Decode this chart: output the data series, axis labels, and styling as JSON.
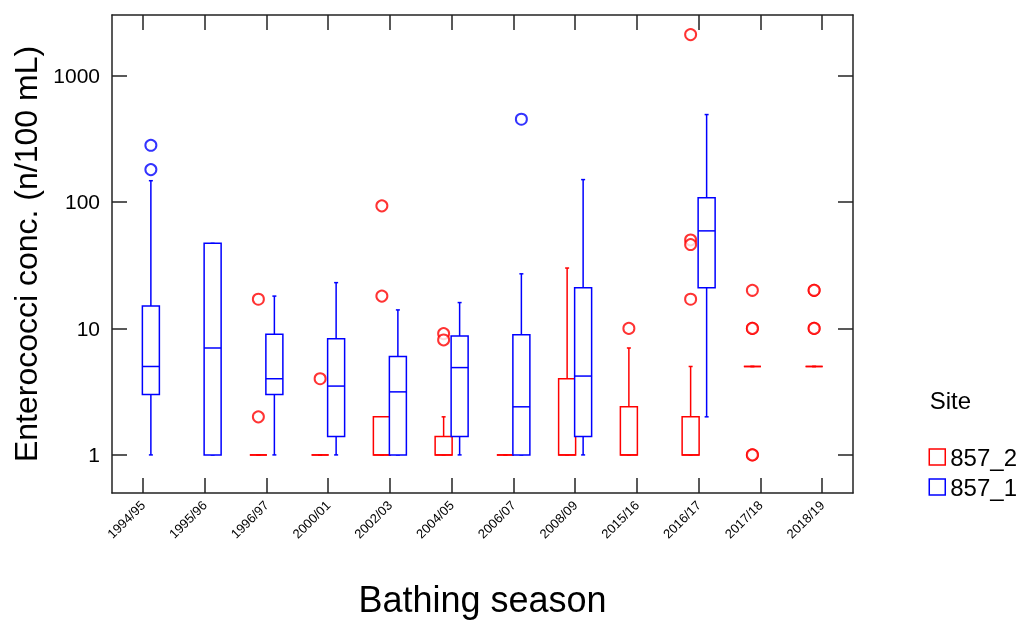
{
  "chart_data": {
    "type": "box",
    "xlabel": "Bathing season",
    "ylabel": "Enterococci conc. (n/100 mL)",
    "legend_title": "Site",
    "legend": "right",
    "log": true,
    "marker": "circle",
    "grid": false,
    "categories": [
      "1994/95",
      "1995/96",
      "1996/97",
      "2000/01",
      "2002/03",
      "2004/05",
      "2006/07",
      "2008/09",
      "2015/16",
      "2016/17",
      "2017/18",
      "2018/19"
    ],
    "ylim": [
      0.5,
      3000
    ],
    "yticks": [
      1,
      10,
      100,
      1000
    ],
    "series": [
      {
        "name": "857_2",
        "color": "#ff0000",
        "boxes": [
          null,
          null,
          {
            "low": 1,
            "q1": 1,
            "median": 1,
            "q3": 1,
            "high": 1,
            "outliers": [
              17,
              2
            ]
          },
          {
            "low": 1,
            "q1": 1,
            "median": 1,
            "q3": 1,
            "high": 1,
            "outliers": [
              4
            ]
          },
          {
            "low": 1,
            "q1": 1,
            "median": 1,
            "q3": 2,
            "high": 2,
            "outliers": [
              93,
              18
            ]
          },
          {
            "low": 1,
            "q1": 1,
            "median": 1,
            "q3": 1.4,
            "high": 2,
            "outliers": [
              9.1,
              8.1
            ]
          },
          {
            "low": 1,
            "q1": 1,
            "median": 1,
            "q3": 1,
            "high": 1
          },
          {
            "low": 1,
            "q1": 1,
            "median": 1,
            "q3": 4,
            "high": 30
          },
          {
            "low": 1,
            "q1": 1,
            "median": 1,
            "q3": 2.4,
            "high": 7,
            "outliers": [
              10
            ]
          },
          {
            "low": 1,
            "q1": 1,
            "median": 1,
            "q3": 2,
            "high": 5,
            "outliers": [
              2100,
              50,
              46,
              17
            ]
          },
          {
            "low": 5,
            "q1": 5,
            "median": 5,
            "q3": 5,
            "high": 5,
            "outliers": [
              20,
              10,
              10,
              1,
              1
            ]
          },
          {
            "low": 5,
            "q1": 5,
            "median": 5,
            "q3": 5,
            "high": 5,
            "outliers": [
              20,
              20,
              10,
              10
            ]
          }
        ]
      },
      {
        "name": "857_1",
        "color": "#0000ff",
        "boxes": [
          {
            "low": 1,
            "q1": 3,
            "median": 5,
            "q3": 15,
            "high": 147,
            "outliers": [
              280,
              180
            ]
          },
          {
            "low": 1,
            "q1": 1,
            "median": 7,
            "q3": 47,
            "high": 47
          },
          {
            "low": 1,
            "q1": 3,
            "median": 4,
            "q3": 9,
            "high": 18
          },
          {
            "low": 1,
            "q1": 1.4,
            "median": 3.5,
            "q3": 8.3,
            "high": 23
          },
          {
            "low": 1,
            "q1": 1,
            "median": 3.15,
            "q3": 6,
            "high": 14
          },
          {
            "low": 1,
            "q1": 1.4,
            "median": 4.9,
            "q3": 8.7,
            "high": 16
          },
          {
            "low": 1,
            "q1": 1,
            "median": 2.4,
            "q3": 8.9,
            "high": 27,
            "outliers": [
              450
            ]
          },
          {
            "low": 1,
            "q1": 1.4,
            "median": 4.2,
            "q3": 21,
            "high": 150
          },
          null,
          {
            "low": 2,
            "q1": 21,
            "median": 59,
            "q3": 108,
            "high": 490
          },
          null,
          null
        ]
      }
    ]
  }
}
